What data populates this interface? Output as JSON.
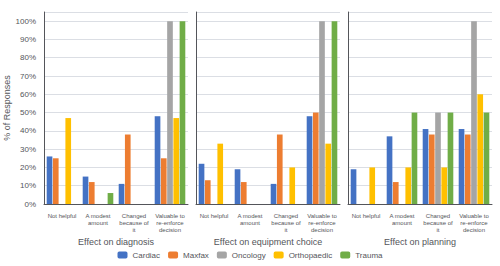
{
  "chart_data": [
    {
      "type": "bar",
      "xlabel": "Effect on diagnosis",
      "ylabel": "% of Responses",
      "categories": [
        "Not helpful",
        "A modest\namount",
        "Changed\nbecause of\nit",
        "Valuable to\nre-enforce\ndecision"
      ],
      "series": [
        {
          "name": "Cardiac",
          "color": "#4472C4",
          "values": [
            26,
            15,
            11,
            48
          ]
        },
        {
          "name": "Maxfax",
          "color": "#ED7D31",
          "values": [
            25,
            12,
            38,
            25
          ]
        },
        {
          "name": "Oncology",
          "color": "#A5A5A5",
          "values": [
            0,
            0,
            0,
            100
          ]
        },
        {
          "name": "Orthopaedic",
          "color": "#FFC000",
          "values": [
            47,
            0,
            0,
            47
          ]
        },
        {
          "name": "Trauma",
          "color": "#70AD47",
          "values": [
            0,
            6,
            0,
            100
          ]
        }
      ],
      "ylim": [
        0,
        105
      ],
      "yticks": [
        {
          "value": 0,
          "label": "0%"
        },
        {
          "value": 10,
          "label": "10%"
        },
        {
          "value": 20,
          "label": "20%"
        },
        {
          "value": 30,
          "label": "30%"
        },
        {
          "value": 40,
          "label": "40%"
        },
        {
          "value": 50,
          "label": "50%"
        },
        {
          "value": 60,
          "label": "60%"
        },
        {
          "value": 70,
          "label": "70%"
        },
        {
          "value": 80,
          "label": "80%"
        },
        {
          "value": 90,
          "label": "90%"
        },
        {
          "value": 100,
          "label": "100%"
        }
      ],
      "grid": true,
      "legend": "bottom"
    },
    {
      "type": "bar",
      "xlabel": "Effect on equipment choice",
      "categories": [
        "Not helpful",
        "A modest\namount",
        "Changed\nbecause of\nit",
        "Valuable to\nre-enforce\ndecision"
      ],
      "series": [
        {
          "name": "Cardiac",
          "color": "#4472C4",
          "values": [
            22,
            19,
            11,
            48
          ]
        },
        {
          "name": "Maxfax",
          "color": "#ED7D31",
          "values": [
            13,
            12,
            38,
            50
          ]
        },
        {
          "name": "Oncology",
          "color": "#A5A5A5",
          "values": [
            0,
            0,
            0,
            100
          ]
        },
        {
          "name": "Orthopaedic",
          "color": "#FFC000",
          "values": [
            33,
            0,
            20,
            33
          ]
        },
        {
          "name": "Trauma",
          "color": "#70AD47",
          "values": [
            0,
            0,
            0,
            100
          ]
        }
      ],
      "ylim": [
        0,
        105
      ],
      "yticks": [
        {
          "value": 0,
          "label": "0%"
        },
        {
          "value": 10,
          "label": "10%"
        },
        {
          "value": 20,
          "label": "20%"
        },
        {
          "value": 30,
          "label": "30%"
        },
        {
          "value": 40,
          "label": "40%"
        },
        {
          "value": 50,
          "label": "50%"
        },
        {
          "value": 60,
          "label": "60%"
        },
        {
          "value": 70,
          "label": "70%"
        },
        {
          "value": 80,
          "label": "80%"
        },
        {
          "value": 90,
          "label": "90%"
        },
        {
          "value": 100,
          "label": "100%"
        }
      ],
      "grid": true,
      "tick_labels": "x"
    },
    {
      "type": "bar",
      "xlabel": "Effect on planning",
      "categories": [
        "Not helpful",
        "A modest\namount",
        "Changed\nbecause of\nit",
        "Valuable to\nre-enforce\ndecision"
      ],
      "series": [
        {
          "name": "Cardiac",
          "color": "#4472C4",
          "values": [
            19,
            37,
            41,
            41
          ]
        },
        {
          "name": "Maxfax",
          "color": "#ED7D31",
          "values": [
            0,
            12,
            38,
            38
          ]
        },
        {
          "name": "Oncology",
          "color": "#A5A5A5",
          "values": [
            0,
            0,
            50,
            100
          ]
        },
        {
          "name": "Orthopaedic",
          "color": "#FFC000",
          "values": [
            20,
            20,
            20,
            60
          ]
        },
        {
          "name": "Trauma",
          "color": "#70AD47",
          "values": [
            0,
            50,
            50,
            50
          ]
        }
      ],
      "ylim": [
        0,
        105
      ],
      "yticks": [
        {
          "value": 0,
          "label": "0%"
        },
        {
          "value": 10,
          "label": "10%"
        },
        {
          "value": 20,
          "label": "20%"
        },
        {
          "value": 30,
          "label": "30%"
        },
        {
          "value": 40,
          "label": "40%"
        },
        {
          "value": 50,
          "label": "50%"
        },
        {
          "value": 60,
          "label": "60%"
        },
        {
          "value": 70,
          "label": "70%"
        },
        {
          "value": 80,
          "label": "80%"
        },
        {
          "value": 90,
          "label": "90%"
        },
        {
          "value": 100,
          "label": "100%"
        }
      ],
      "grid": true,
      "tick_labels": "x"
    }
  ]
}
